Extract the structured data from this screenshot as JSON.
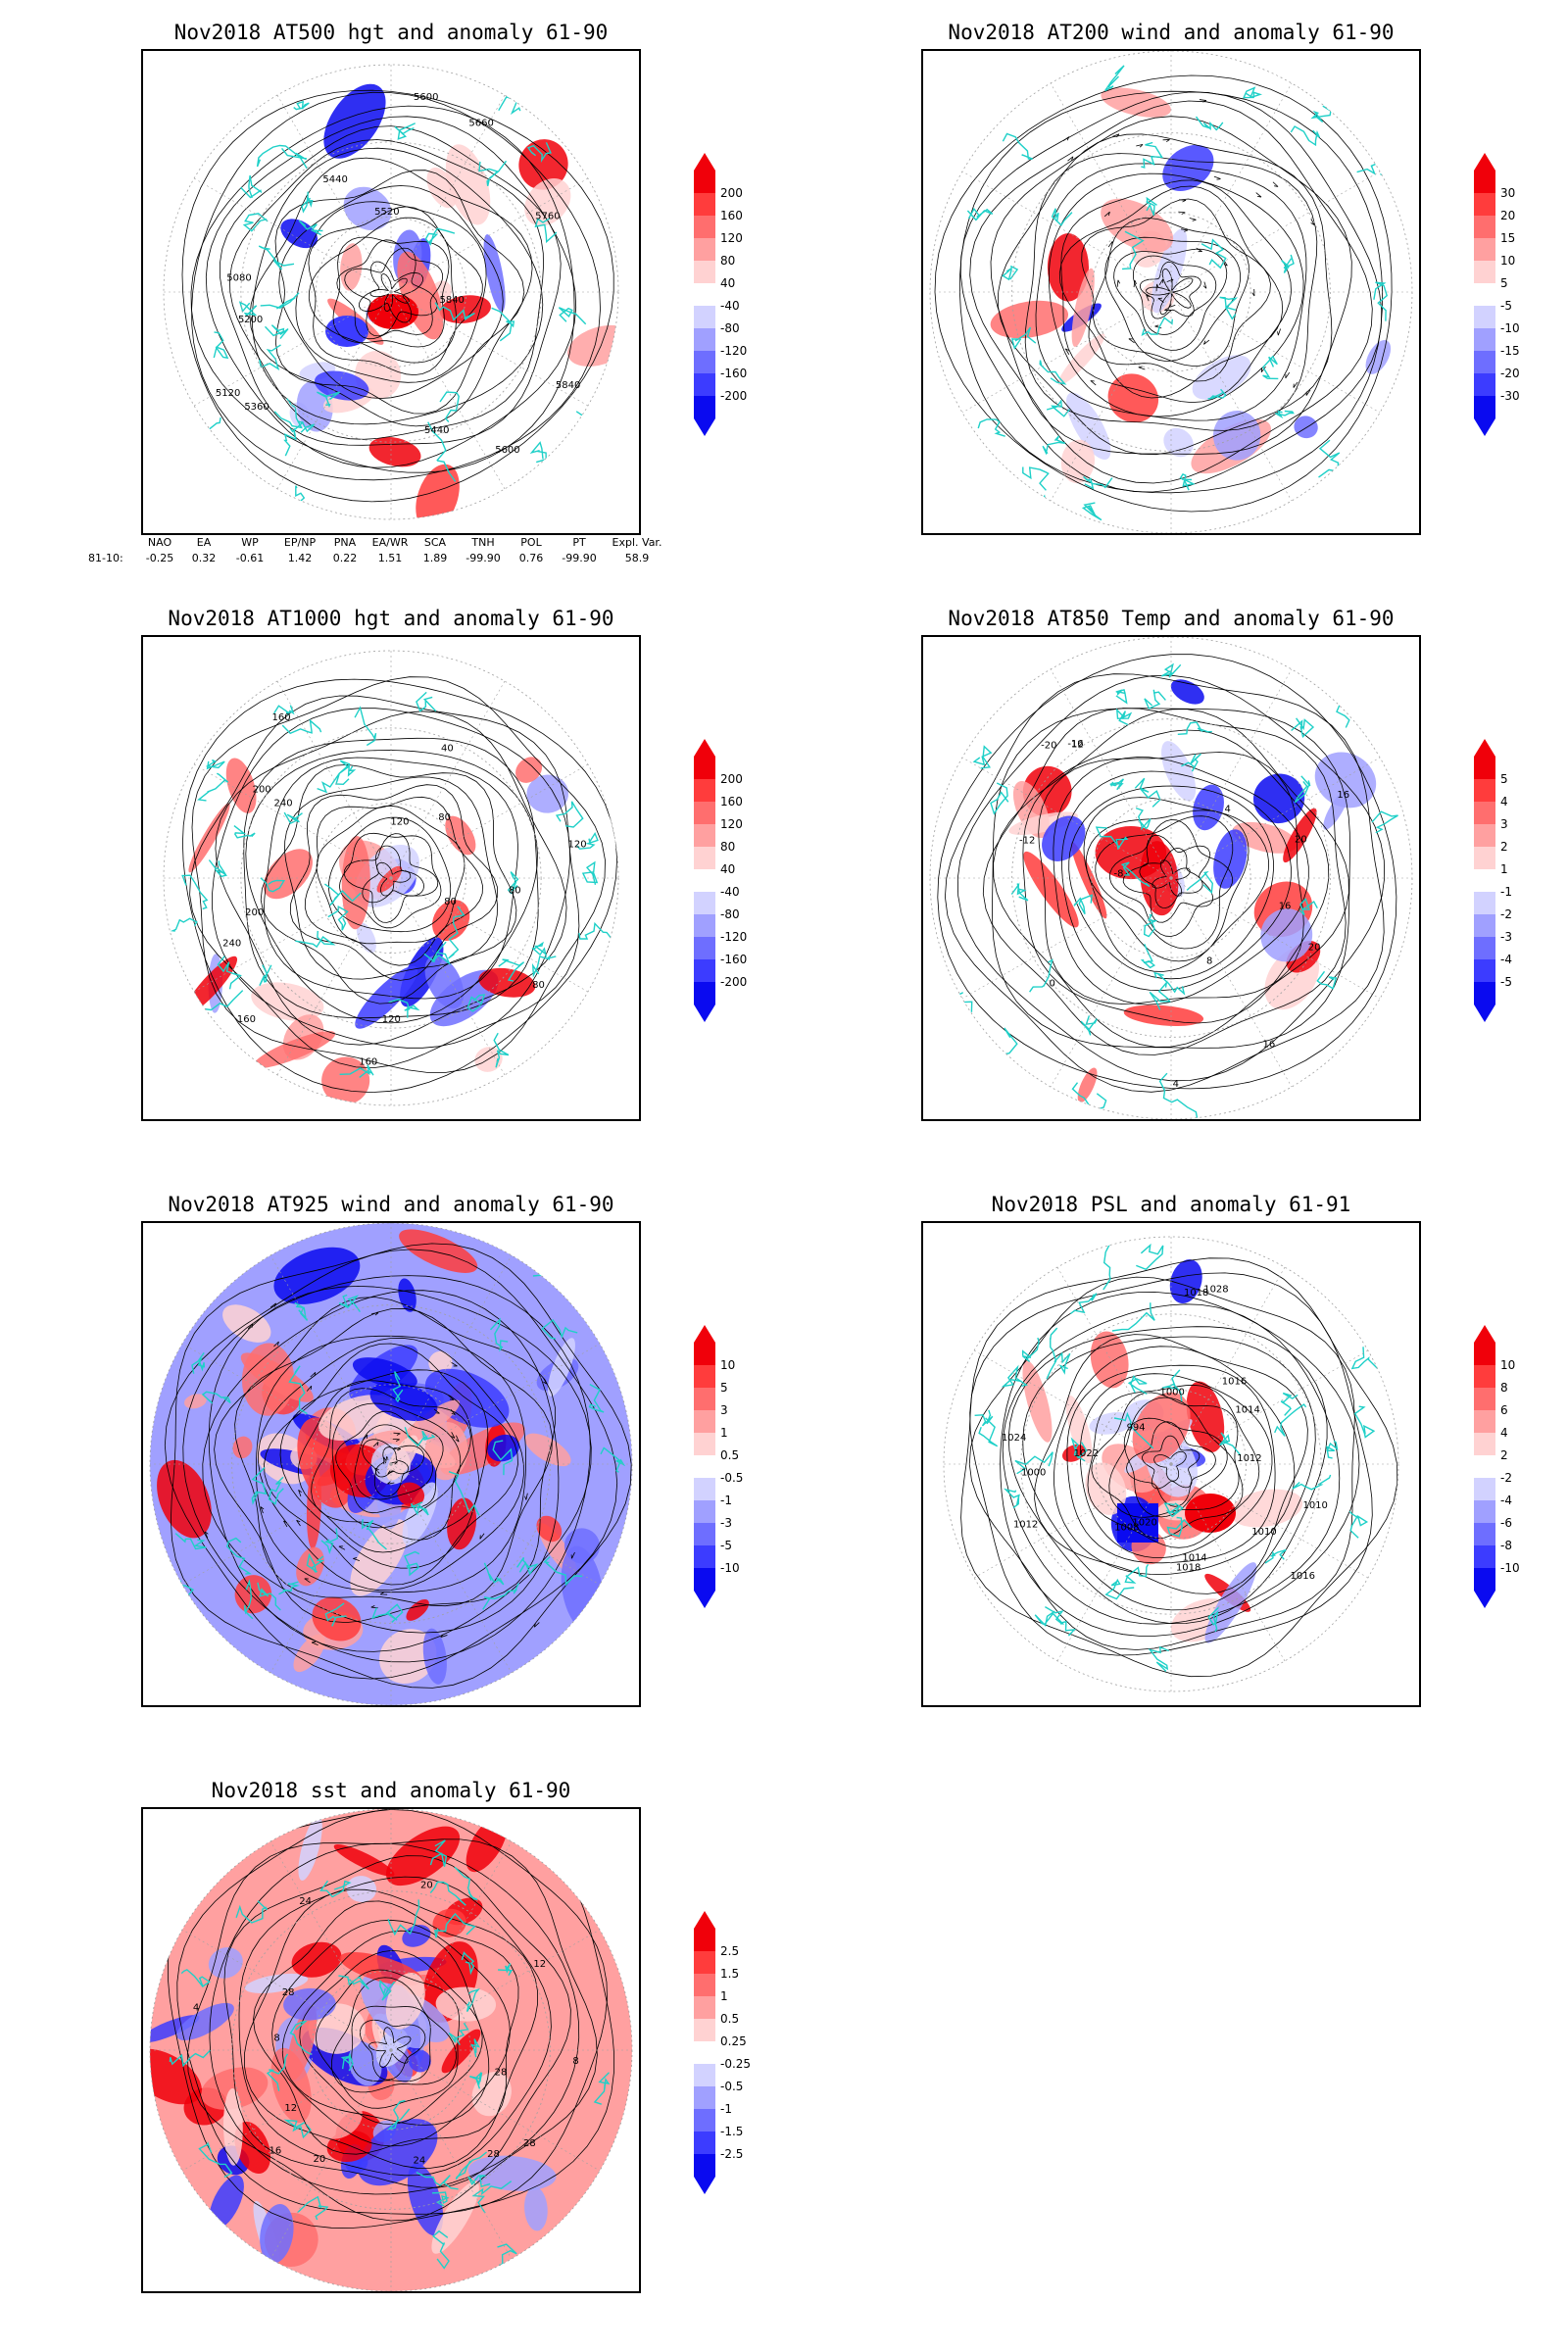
{
  "panels": [
    {
      "title": "Nov2018 AT500 hgt and anomaly 61-90",
      "colorbar": [
        "200",
        "160",
        "120",
        "80",
        "40",
        "-40",
        "-80",
        "-120",
        "-160",
        "-200"
      ],
      "contour_labels": [
        "5840",
        "5600",
        "5440",
        "5360",
        "5200",
        "5120",
        "5080",
        "5440",
        "5520",
        "5600",
        "5660",
        "5760",
        "5840"
      ],
      "variant": "hgt"
    },
    {
      "title": "Nov2018 AT200 wind and anomaly 61-90",
      "colorbar": [
        "30",
        "20",
        "15",
        "10",
        "5",
        "-5",
        "-10",
        "-15",
        "-20",
        "-30"
      ],
      "contour_labels": [],
      "variant": "wind"
    },
    {
      "title": "Nov2018 AT1000 hgt and anomaly 61-90",
      "colorbar": [
        "200",
        "160",
        "120",
        "80",
        "40",
        "-40",
        "-80",
        "-120",
        "-160",
        "-200"
      ],
      "contour_labels": [
        "80",
        "80",
        "120",
        "160",
        "160",
        "200",
        "240",
        "240",
        "200",
        "160",
        "120",
        "80",
        "40",
        "120",
        "80"
      ],
      "variant": "hgt1000"
    },
    {
      "title": "Nov2018 AT850 Temp and anomaly 61-90",
      "colorbar": [
        "5",
        "4",
        "3",
        "2",
        "1",
        "-1",
        "-2",
        "-3",
        "-4",
        "-5"
      ],
      "contour_labels": [
        "16",
        "16",
        "8",
        "4",
        "0",
        "-8",
        "-12",
        "-16",
        "-20",
        "12",
        "4",
        "16",
        "20",
        "20"
      ],
      "variant": "temp"
    },
    {
      "title": "Nov2018 AT925 wind and anomaly 61-90",
      "colorbar": [
        "10",
        "5",
        "3",
        "1",
        "0.5",
        "-0.5",
        "-1",
        "-3",
        "-5",
        "-10"
      ],
      "contour_labels": [],
      "variant": "wind925"
    },
    {
      "title": "Nov2018 PSL and anomaly 61-91",
      "colorbar": [
        "10",
        "8",
        "6",
        "4",
        "2",
        "-2",
        "-4",
        "-6",
        "-8",
        "-10"
      ],
      "contour_labels": [
        "1010",
        "1014",
        "1016",
        "1018",
        "1020",
        "1012",
        "1008",
        "1000",
        "1024",
        "1022",
        "994",
        "1000",
        "1028",
        "1018",
        "1016",
        "1014",
        "1012",
        "1010"
      ],
      "variant": "psl"
    },
    {
      "title": "Nov2018 sst and anomaly 61-90",
      "colorbar": [
        "2.5",
        "1.5",
        "1",
        "0.5",
        "0.25",
        "-0.25",
        "-0.5",
        "-1",
        "-1.5",
        "-2.5"
      ],
      "contour_labels": [
        "28",
        "28",
        "24",
        "20",
        "16",
        "12",
        "8",
        "4",
        "28",
        "24",
        "20",
        "12",
        "8",
        "28"
      ],
      "variant": "sst"
    }
  ],
  "index_table": {
    "headers": [
      "NAO",
      "EA",
      "WP",
      "EP/NP",
      "PNA",
      "EA/WR",
      "SCA",
      "TNH",
      "POL",
      "PT",
      "Expl. Var."
    ],
    "row_label": "81-10:",
    "values": [
      "-0.25",
      "0.32",
      "-0.61",
      "1.42",
      "0.22",
      "1.51",
      "1.89",
      "-99.90",
      "0.76",
      "-99.90",
      "58.9"
    ]
  },
  "colors": {
    "positive": [
      "#f0000a",
      "#ff3c3c",
      "#ff6e6e",
      "#ffa0a0",
      "#ffd2d2"
    ],
    "zero": "#ffffff",
    "negative": [
      "#d2d2ff",
      "#a0a0ff",
      "#6e6eff",
      "#3c3cff",
      "#0a0af0"
    ],
    "coastline": "#1fd0c8",
    "contour": "#000000",
    "grid": "#a0a0a0"
  }
}
